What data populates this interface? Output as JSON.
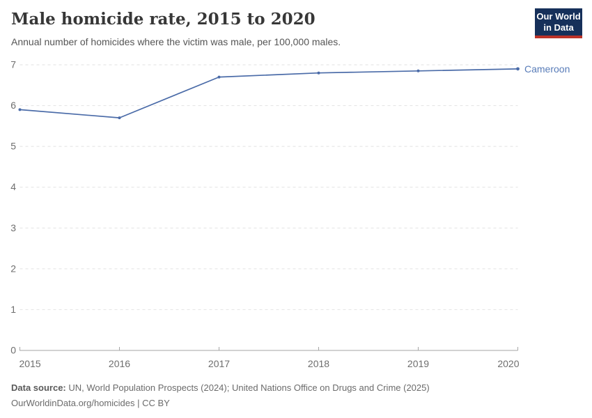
{
  "header": {
    "title": "Male homicide rate, 2015 to 2020",
    "subtitle": "Annual number of homicides where the victim was male, per 100,000 males.",
    "logo": {
      "line1": "Our World",
      "line2": "in Data",
      "bg_color": "#16305a",
      "accent_color": "#bc3228"
    }
  },
  "chart_data": {
    "type": "line",
    "title": "Male homicide rate, 2015 to 2020",
    "subtitle": "Annual number of homicides where the victim was male, per 100,000 males.",
    "x": [
      2015,
      2016,
      2017,
      2018,
      2019,
      2020
    ],
    "series": [
      {
        "name": "Cameroon",
        "values": [
          5.9,
          5.7,
          6.7,
          6.8,
          6.85,
          6.9
        ],
        "color": "#4a6ba8",
        "label_color": "#587cb8"
      }
    ],
    "xlabel": "",
    "ylabel": "",
    "ylim": [
      0,
      7
    ],
    "yticks": [
      0,
      1,
      2,
      3,
      4,
      5,
      6,
      7
    ],
    "xticks": [
      2015,
      2016,
      2017,
      2018,
      2019,
      2020
    ],
    "grid": "horizontal-dashed",
    "legend_position": "end-of-line-label",
    "colors": {
      "grid": "#e2e2e2",
      "axis": "#a6a6a6",
      "tick_text": "#6e6e6e"
    }
  },
  "footer": {
    "data_source_label": "Data source:",
    "data_source_text": "UN, World Population Prospects (2024); United Nations Office on Drugs and Crime (2025)",
    "attribution": "OurWorldinData.org/homicides | CC BY"
  }
}
